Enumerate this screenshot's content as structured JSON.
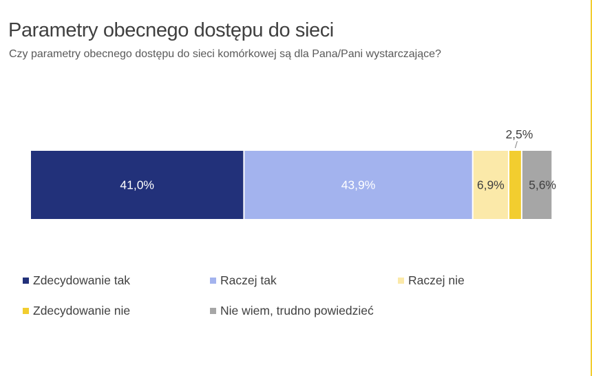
{
  "title": "Parametry obecnego dostępu do sieci",
  "subtitle": "Czy parametry obecnego dostępu do sieci komórkowej są dla Pana/Pani wystarczające?",
  "colors": {
    "accent_rule": "#f2cd2f"
  },
  "chart_data": {
    "type": "bar",
    "orientation": "horizontal",
    "stacked": true,
    "percent_stacked": true,
    "categories": [
      ""
    ],
    "series": [
      {
        "name": "Zdecydowanie tak",
        "values": [
          41.0
        ],
        "label": "41,0%",
        "color": "#22317a",
        "label_color": "#ffffff"
      },
      {
        "name": "Raczej tak",
        "values": [
          43.9
        ],
        "label": "43,9%",
        "color": "#a3b3ee",
        "label_color": "#ffffff"
      },
      {
        "name": "Raczej nie",
        "values": [
          6.9
        ],
        "label": "6,9%",
        "color": "#fbe9a9",
        "label_color": "#404040"
      },
      {
        "name": "Zdecydowanie nie",
        "values": [
          2.5
        ],
        "label": "2,5%",
        "color": "#f2cd2f",
        "label_color": "#404040"
      },
      {
        "name": "Nie wiem, trudno powiedzieć",
        "values": [
          5.6
        ],
        "label": "5,6%",
        "color": "#a6a6a6",
        "label_color": "#404040"
      }
    ],
    "xlim": [
      0,
      100
    ],
    "grid": false,
    "legend": "bottom"
  }
}
